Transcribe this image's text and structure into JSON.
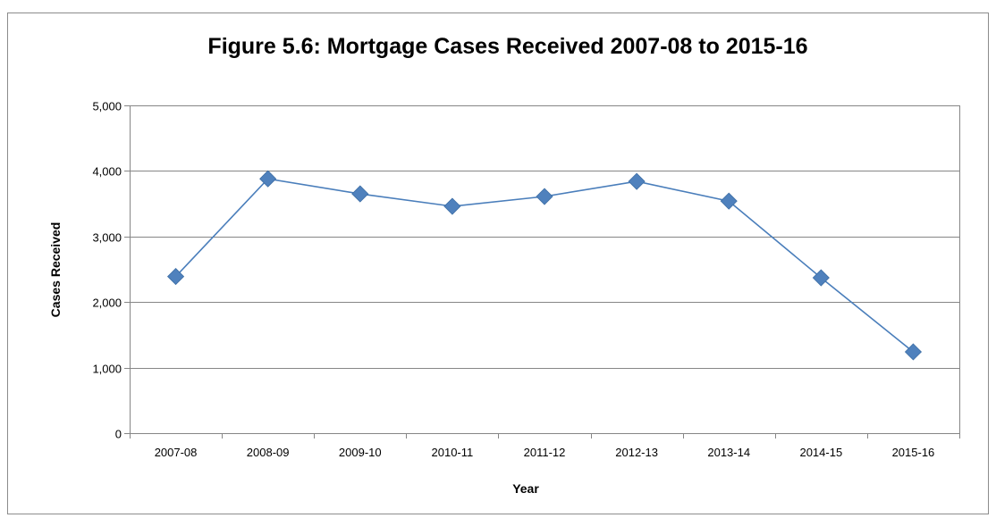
{
  "chart_data": {
    "type": "line",
    "title": "Figure 5.6: Mortgage Cases Received 2007-08 to 2015-16",
    "xlabel": "Year",
    "ylabel": "Cases Received",
    "categories": [
      "2007-08",
      "2008-09",
      "2009-10",
      "2010-11",
      "2011-12",
      "2012-13",
      "2013-14",
      "2014-15",
      "2015-16"
    ],
    "series": [
      {
        "values": [
          2390,
          3880,
          3650,
          3460,
          3610,
          3840,
          3540,
          2370,
          1240
        ]
      }
    ],
    "ylim": [
      0,
      5000
    ],
    "yticks": [
      0,
      1000,
      2000,
      3000,
      4000,
      5000
    ],
    "ytick_labels": [
      "0",
      "1,000",
      "2,000",
      "3,000",
      "4,000",
      "5,000"
    ],
    "grid": true,
    "legend": "none",
    "line_color": "#4a7ebb",
    "marker_color": "#4f81bd",
    "marker": "diamond"
  }
}
